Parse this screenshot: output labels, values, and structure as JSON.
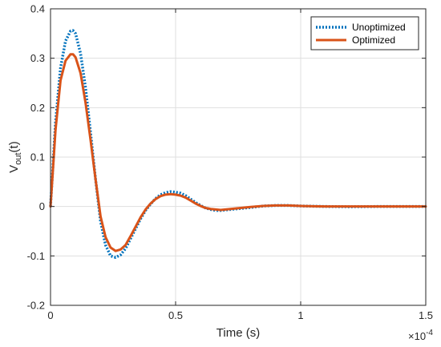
{
  "chart_data": {
    "type": "line",
    "xlabel": "Time (s)",
    "ylabel": "V",
    "ylabel_sub": "out",
    "ylabel_suffix": "(t)",
    "x_exponent_label": "×10",
    "x_exponent_power": "-4",
    "xlim": [
      0,
      1.5
    ],
    "ylim": [
      -0.2,
      0.4
    ],
    "x_scale_factor": 0.0001,
    "grid": true,
    "legend_position": "top-right",
    "x_ticks": [
      0,
      0.5,
      1,
      1.5
    ],
    "x_tick_labels": [
      "0",
      "0.5",
      "1",
      "1.5"
    ],
    "y_ticks": [
      -0.2,
      -0.1,
      0,
      0.1,
      0.2,
      0.3,
      0.4
    ],
    "y_tick_labels": [
      "-0.2",
      "-0.1",
      "0",
      "0.1",
      "0.2",
      "0.3",
      "0.4"
    ],
    "series": [
      {
        "name": "Unoptimized",
        "color": "#0072BD",
        "style": "dotted",
        "x": [
          0,
          0.02,
          0.04,
          0.06,
          0.08,
          0.09,
          0.1,
          0.12,
          0.14,
          0.16,
          0.18,
          0.2,
          0.22,
          0.24,
          0.26,
          0.28,
          0.3,
          0.32,
          0.34,
          0.36,
          0.38,
          0.4,
          0.42,
          0.44,
          0.46,
          0.48,
          0.5,
          0.52,
          0.54,
          0.56,
          0.58,
          0.6,
          0.62,
          0.64,
          0.66,
          0.68,
          0.7,
          0.72,
          0.74,
          0.76,
          0.8,
          0.85,
          0.9,
          0.95,
          1.0,
          1.05,
          1.1,
          1.2,
          1.3,
          1.4,
          1.5
        ],
        "y": [
          0,
          0.17,
          0.28,
          0.335,
          0.355,
          0.356,
          0.35,
          0.31,
          0.24,
          0.15,
          0.055,
          -0.03,
          -0.078,
          -0.1,
          -0.103,
          -0.098,
          -0.085,
          -0.065,
          -0.045,
          -0.025,
          -0.008,
          0.005,
          0.016,
          0.024,
          0.028,
          0.03,
          0.029,
          0.027,
          0.022,
          0.015,
          0.008,
          0.002,
          -0.003,
          -0.006,
          -0.008,
          -0.008,
          -0.007,
          -0.006,
          -0.005,
          -0.004,
          -0.002,
          0.001,
          0.002,
          0.002,
          0.001,
          0.0005,
          0,
          -0.0005,
          0,
          0,
          0
        ]
      },
      {
        "name": "Optimized",
        "color": "#D95319",
        "style": "solid",
        "x": [
          0,
          0.02,
          0.04,
          0.06,
          0.08,
          0.09,
          0.1,
          0.12,
          0.14,
          0.16,
          0.18,
          0.2,
          0.22,
          0.24,
          0.26,
          0.28,
          0.3,
          0.32,
          0.34,
          0.36,
          0.38,
          0.4,
          0.42,
          0.44,
          0.46,
          0.48,
          0.5,
          0.52,
          0.54,
          0.56,
          0.58,
          0.6,
          0.62,
          0.64,
          0.66,
          0.68,
          0.7,
          0.72,
          0.74,
          0.76,
          0.8,
          0.85,
          0.9,
          0.95,
          1.0,
          1.05,
          1.1,
          1.2,
          1.3,
          1.4,
          1.5
        ],
        "y": [
          0,
          0.155,
          0.255,
          0.295,
          0.308,
          0.308,
          0.302,
          0.27,
          0.21,
          0.135,
          0.055,
          -0.02,
          -0.062,
          -0.083,
          -0.09,
          -0.087,
          -0.078,
          -0.06,
          -0.041,
          -0.022,
          -0.006,
          0.006,
          0.015,
          0.021,
          0.024,
          0.025,
          0.024,
          0.022,
          0.018,
          0.012,
          0.006,
          0.001,
          -0.003,
          -0.005,
          -0.006,
          -0.007,
          -0.006,
          -0.005,
          -0.004,
          -0.003,
          -0.001,
          0.001,
          0.002,
          0.002,
          0.001,
          0.0005,
          0,
          0,
          0,
          0,
          0
        ]
      }
    ]
  }
}
